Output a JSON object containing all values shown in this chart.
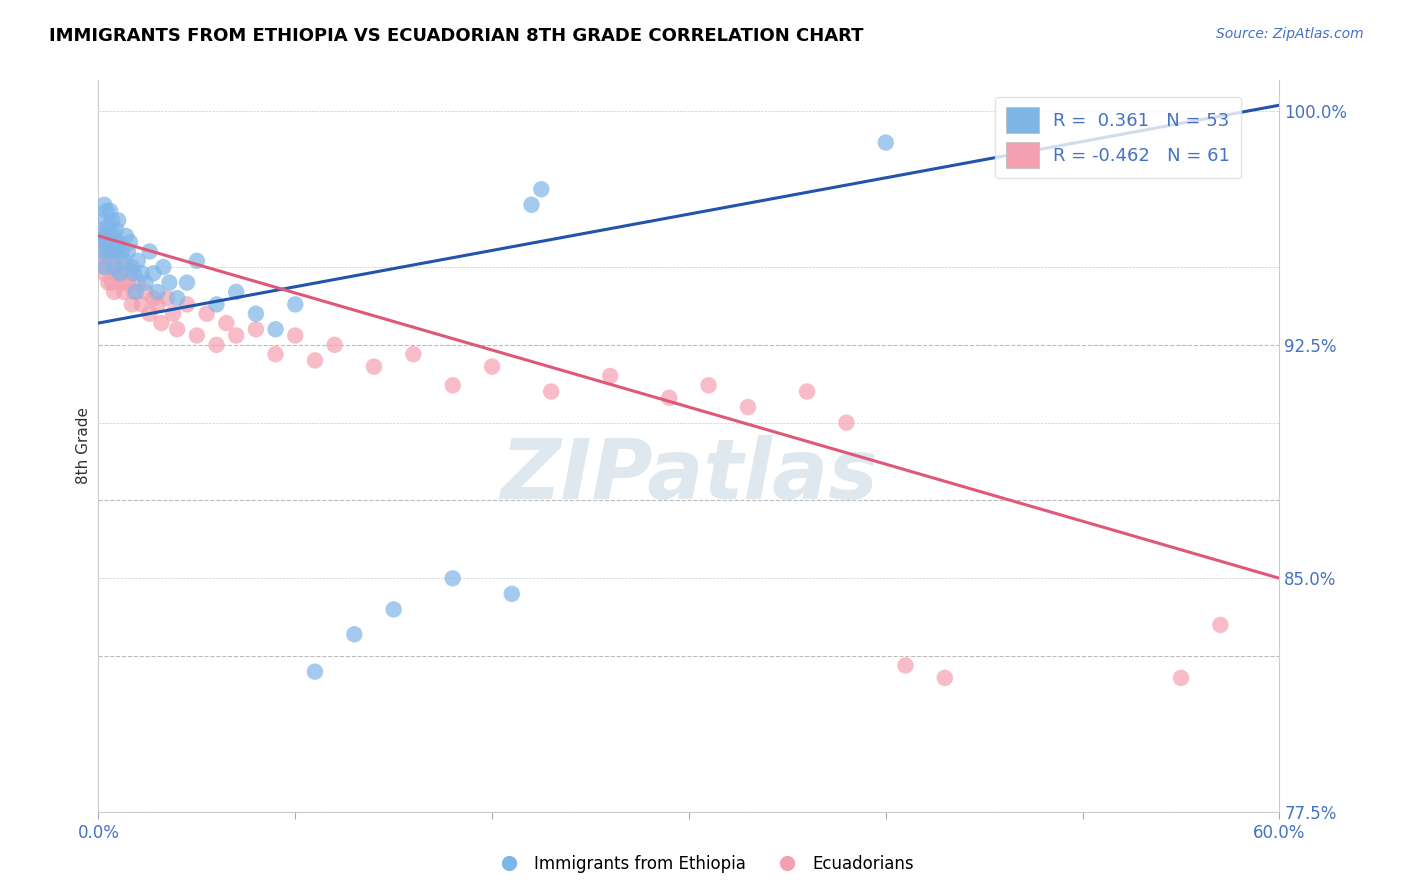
{
  "title": "IMMIGRANTS FROM ETHIOPIA VS ECUADORIAN 8TH GRADE CORRELATION CHART",
  "source": "Source: ZipAtlas.com",
  "xlabel_blue": "Immigrants from Ethiopia",
  "xlabel_pink": "Ecuadorians",
  "ylabel": "8th Grade",
  "xmin": 0.0,
  "xmax": 0.6,
  "ymin": 0.775,
  "ymax": 1.01,
  "r_blue": 0.361,
  "n_blue": 53,
  "r_pink": -0.462,
  "n_pink": 61,
  "blue_color": "#7EB6E8",
  "pink_color": "#F4A0B0",
  "trend_blue_color": "#2255AA",
  "trend_pink_color": "#E05878",
  "watermark": "ZIPatlas",
  "blue_trend_x0": 0.0,
  "blue_trend_y0": 0.932,
  "blue_trend_x1": 0.6,
  "blue_trend_y1": 1.002,
  "pink_trend_x0": 0.0,
  "pink_trend_y0": 0.96,
  "pink_trend_x1": 0.6,
  "pink_trend_y1": 0.85,
  "blue_x": [
    0.001,
    0.002,
    0.002,
    0.003,
    0.003,
    0.003,
    0.004,
    0.004,
    0.005,
    0.005,
    0.006,
    0.006,
    0.007,
    0.007,
    0.008,
    0.008,
    0.009,
    0.009,
    0.01,
    0.01,
    0.011,
    0.012,
    0.013,
    0.014,
    0.015,
    0.016,
    0.017,
    0.018,
    0.019,
    0.02,
    0.022,
    0.024,
    0.026,
    0.028,
    0.03,
    0.033,
    0.036,
    0.04,
    0.045,
    0.05,
    0.06,
    0.07,
    0.08,
    0.09,
    0.1,
    0.11,
    0.13,
    0.15,
    0.18,
    0.21,
    0.22,
    0.225,
    0.4
  ],
  "blue_y": [
    0.96,
    0.955,
    0.965,
    0.97,
    0.96,
    0.95,
    0.958,
    0.968,
    0.963,
    0.955,
    0.96,
    0.968,
    0.955,
    0.965,
    0.96,
    0.95,
    0.962,
    0.955,
    0.958,
    0.965,
    0.948,
    0.955,
    0.952,
    0.96,
    0.955,
    0.958,
    0.95,
    0.948,
    0.942,
    0.952,
    0.948,
    0.945,
    0.955,
    0.948,
    0.942,
    0.95,
    0.945,
    0.94,
    0.945,
    0.952,
    0.938,
    0.942,
    0.935,
    0.93,
    0.938,
    0.82,
    0.832,
    0.84,
    0.85,
    0.845,
    0.97,
    0.975,
    0.99
  ],
  "pink_x": [
    0.001,
    0.002,
    0.002,
    0.003,
    0.003,
    0.004,
    0.004,
    0.005,
    0.005,
    0.006,
    0.006,
    0.007,
    0.007,
    0.008,
    0.008,
    0.009,
    0.01,
    0.011,
    0.012,
    0.013,
    0.014,
    0.015,
    0.016,
    0.017,
    0.018,
    0.02,
    0.022,
    0.024,
    0.026,
    0.028,
    0.03,
    0.032,
    0.035,
    0.038,
    0.04,
    0.045,
    0.05,
    0.055,
    0.06,
    0.065,
    0.07,
    0.08,
    0.09,
    0.1,
    0.11,
    0.12,
    0.14,
    0.16,
    0.18,
    0.2,
    0.23,
    0.26,
    0.29,
    0.31,
    0.33,
    0.36,
    0.38,
    0.41,
    0.43,
    0.55,
    0.57
  ],
  "pink_y": [
    0.955,
    0.962,
    0.952,
    0.958,
    0.948,
    0.96,
    0.95,
    0.955,
    0.945,
    0.958,
    0.95,
    0.955,
    0.945,
    0.952,
    0.942,
    0.948,
    0.955,
    0.948,
    0.945,
    0.942,
    0.95,
    0.945,
    0.948,
    0.938,
    0.942,
    0.945,
    0.938,
    0.942,
    0.935,
    0.94,
    0.938,
    0.932,
    0.94,
    0.935,
    0.93,
    0.938,
    0.928,
    0.935,
    0.925,
    0.932,
    0.928,
    0.93,
    0.922,
    0.928,
    0.92,
    0.925,
    0.918,
    0.922,
    0.912,
    0.918,
    0.91,
    0.915,
    0.908,
    0.912,
    0.905,
    0.91,
    0.9,
    0.822,
    0.818,
    0.818,
    0.835
  ]
}
